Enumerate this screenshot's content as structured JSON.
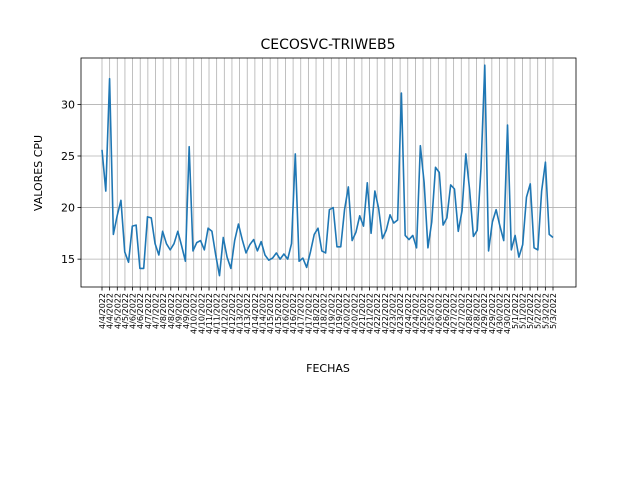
{
  "chart_data": {
    "type": "line",
    "title": "CECOSVC-TRIWEB5",
    "xlabel": "FECHAS",
    "ylabel": "VALORES CPU",
    "ylim": [
      12.3,
      34.5
    ],
    "yticks": [
      15,
      20,
      25,
      30
    ],
    "grid": true,
    "line_color": "#1f77b4",
    "x_tick_labels": [
      "4/4/2022",
      "4/4/2022",
      "4/5/2022",
      "4/5/2022",
      "4/6/2022",
      "4/6/2022",
      "4/7/2022",
      "4/7/2022",
      "4/8/2022",
      "4/8/2022",
      "4/9/2022",
      "4/9/2022",
      "4/10/2022",
      "4/10/2022",
      "4/11/2022",
      "4/11/2022",
      "4/12/2022",
      "4/12/2022",
      "4/13/2022",
      "4/13/2022",
      "4/14/2022",
      "4/14/2022",
      "4/15/2022",
      "4/15/2022",
      "4/16/2022",
      "4/16/2022",
      "4/17/2022",
      "4/17/2022",
      "4/18/2022",
      "4/18/2022",
      "4/19/2022",
      "4/19/2022",
      "4/20/2022",
      "4/20/2022",
      "4/21/2022",
      "4/21/2022",
      "4/22/2022",
      "4/22/2022",
      "4/23/2022",
      "4/23/2022",
      "4/24/2022",
      "4/24/2022",
      "4/25/2022",
      "4/25/2022",
      "4/26/2022",
      "4/26/2022",
      "4/27/2022",
      "4/27/2022",
      "4/28/2022",
      "4/28/2022",
      "4/29/2022",
      "4/29/2022",
      "4/30/2022",
      "4/30/2022",
      "5/1/2022",
      "5/1/2022",
      "5/2/2022",
      "5/2/2022",
      "5/3/2022",
      "5/3/2022"
    ],
    "series": [
      {
        "values": [
          25.6,
          21.6,
          32.5,
          17.4,
          19.2,
          20.7,
          15.7,
          14.7,
          18.2,
          18.3,
          14.1,
          14.1,
          19.1,
          19.0,
          16.5,
          15.4,
          17.7,
          16.5,
          15.9,
          16.5,
          17.7,
          16.3,
          14.8,
          25.9,
          15.8,
          16.6,
          16.8,
          15.9,
          18.0,
          17.7,
          15.4,
          13.4,
          17.1,
          15.2,
          14.1,
          16.8,
          18.4,
          16.9,
          15.6,
          16.4,
          16.9,
          15.8,
          16.7,
          15.4,
          14.9,
          15.1,
          15.6,
          15.0,
          15.5,
          15.0,
          16.5,
          25.2,
          14.8,
          15.1,
          14.2,
          15.7,
          17.4,
          18.0,
          15.8,
          15.6,
          19.8,
          20.0,
          16.2,
          16.2,
          19.8,
          22.0,
          16.8,
          17.6,
          19.2,
          18.2,
          22.4,
          17.5,
          21.6,
          19.9,
          17.0,
          17.8,
          19.3,
          18.5,
          18.8,
          31.1,
          17.3,
          16.9,
          17.3,
          16.1,
          26.0,
          22.4,
          16.1,
          18.6,
          23.9,
          23.4,
          18.3,
          19.0,
          22.2,
          21.8,
          17.7,
          19.7,
          25.2,
          21.7,
          17.2,
          17.8,
          23.8,
          33.8,
          15.8,
          18.6,
          19.8,
          18.2,
          16.8,
          28.0,
          15.9,
          17.3,
          15.2,
          16.4,
          21.0,
          22.3,
          16.1,
          15.9,
          21.6,
          24.4,
          17.4,
          17.1
        ]
      }
    ]
  }
}
